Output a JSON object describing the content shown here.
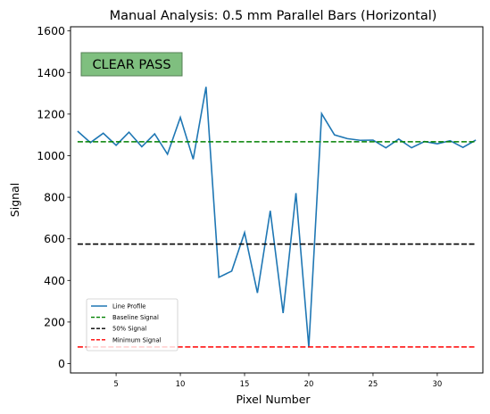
{
  "chart_data": {
    "type": "line",
    "title": "Manual Analysis: 0.5 mm Parallel Bars (Horizontal)",
    "xlabel": "Pixel Number",
    "ylabel": "Signal",
    "xlim": [
      1.45,
      33.55
    ],
    "ylim": [
      -45,
      1620
    ],
    "xticks": [
      5,
      10,
      15,
      20,
      25,
      30
    ],
    "yticks": [
      0,
      200,
      400,
      600,
      800,
      1000,
      1200,
      1400,
      1600
    ],
    "grid": false,
    "legend_position": "lower-left",
    "badge": {
      "text": "CLEAR PASS",
      "color": "#7fbf7f"
    },
    "series": [
      {
        "name": "Line Profile",
        "style": "solid",
        "color": "#1f77b4",
        "x": [
          2,
          3,
          4,
          5,
          6,
          7,
          8,
          9,
          10,
          11,
          12,
          13,
          14,
          15,
          16,
          17,
          18,
          19,
          20,
          21,
          22,
          23,
          24,
          25,
          26,
          27,
          28,
          29,
          30,
          31,
          32,
          33
        ],
        "y": [
          1118,
          1063,
          1108,
          1050,
          1113,
          1043,
          1105,
          1007,
          1184,
          983,
          1331,
          415,
          445,
          630,
          340,
          735,
          243,
          820,
          80,
          1202,
          1100,
          1082,
          1074,
          1075,
          1038,
          1080,
          1038,
          1068,
          1057,
          1072,
          1040,
          1075
        ]
      },
      {
        "name": "Baseline Signal",
        "style": "dashed",
        "color": "#008000",
        "x": [
          2,
          33
        ],
        "y": [
          1067,
          1067
        ]
      },
      {
        "name": "50% Signal",
        "style": "dashed",
        "color": "#000000",
        "x": [
          2,
          33
        ],
        "y": [
          575,
          575
        ]
      },
      {
        "name": "Minimum Signal",
        "style": "dashed",
        "color": "#ff0000",
        "x": [
          2,
          33
        ],
        "y": [
          80,
          80
        ]
      }
    ]
  }
}
